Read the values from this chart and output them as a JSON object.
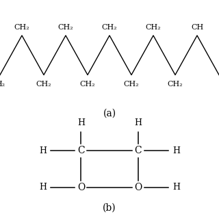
{
  "background": "#ffffff",
  "part_a_label": "(a)",
  "part_b_label": "(b)",
  "top_labels": [
    "CH₂",
    "CH₂",
    "CH₂",
    "CH₂",
    "CH"
  ],
  "bot_labels": [
    "H₂",
    "CH₂",
    "CH₂",
    "CH₂",
    "CH₂"
  ],
  "font_size_mol": 8,
  "font_size_label": 10,
  "font_size_b": 9
}
